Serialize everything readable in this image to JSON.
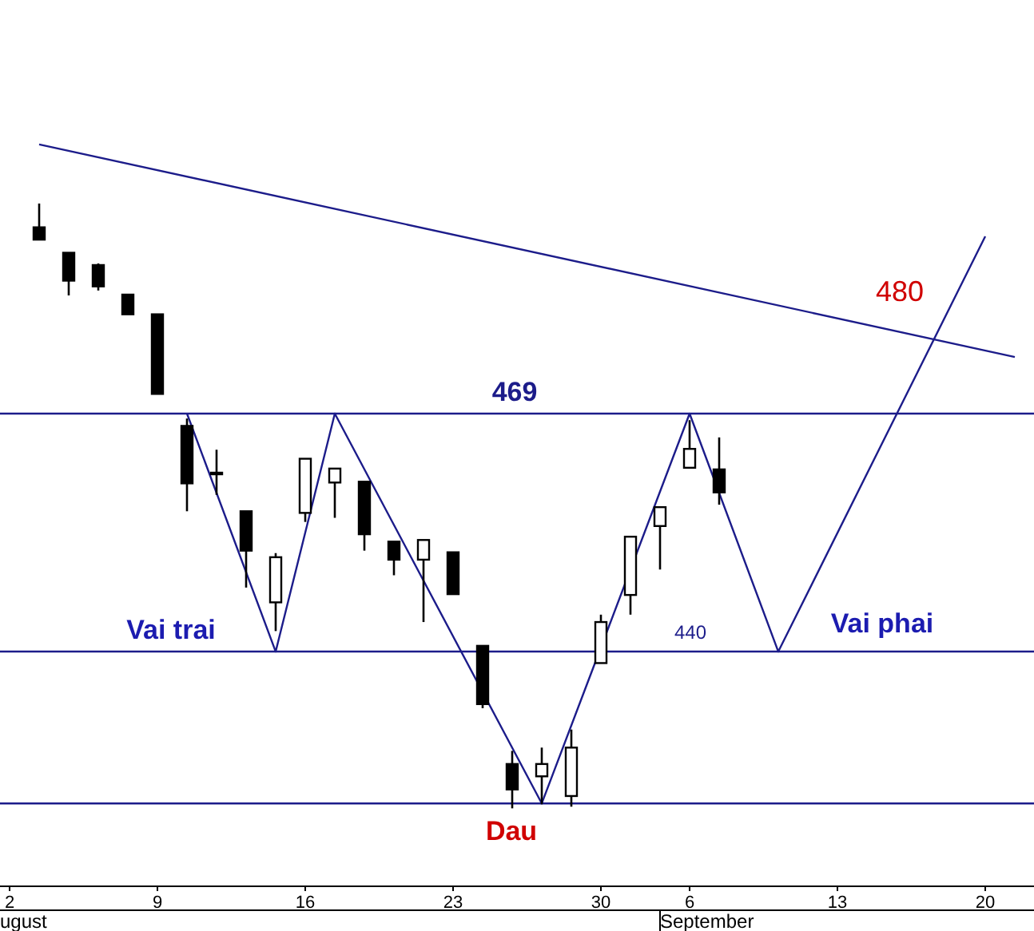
{
  "chart_data": {
    "type": "candlestick",
    "categories": [
      "2",
      null,
      null,
      null,
      null,
      "9",
      null,
      null,
      null,
      null,
      "16",
      null,
      null,
      null,
      null,
      "23",
      null,
      null,
      null,
      null,
      "30",
      null,
      null,
      "6",
      null,
      null,
      null,
      null,
      "13",
      null,
      null,
      null,
      null,
      "20",
      null,
      null
    ],
    "ohlc": [
      null,
      [
        491.7,
        494.6,
        490.2,
        490.2
      ],
      [
        488.6,
        488.6,
        483.4,
        485.2
      ],
      [
        487.1,
        487.3,
        484.0,
        484.5
      ],
      [
        483.5,
        483.5,
        481.1,
        481.1
      ],
      [
        481.1,
        481.1,
        471.4,
        471.4
      ],
      [
        467.5,
        468.4,
        457.1,
        460.5
      ],
      [
        461.8,
        464.6,
        459.1,
        461.8
      ],
      [
        457.1,
        457.1,
        447.8,
        452.3
      ],
      [
        446,
        452,
        442.5,
        451.5
      ],
      [
        456.9,
        463.5,
        455.8,
        463.5
      ],
      [
        460.6,
        462.3,
        456.3,
        462.3
      ],
      [
        460.7,
        460.7,
        452.3,
        454.3
      ],
      [
        453.4,
        453.4,
        449.3,
        451.2
      ],
      [
        451.2,
        453.6,
        443.6,
        453.6
      ],
      [
        452.1,
        452.1,
        447.0,
        447.0
      ],
      [
        440.7,
        440.7,
        433.1,
        433.6
      ],
      [
        426.3,
        427.9,
        420.9,
        423.2
      ],
      [
        424.8,
        428.3,
        421.4,
        426.3
      ],
      [
        422.4,
        430.5,
        421.1,
        428.3
      ],
      [
        438.6,
        444.5,
        438.6,
        443.6
      ],
      [
        446.9,
        454.0,
        444.5,
        454.0
      ],
      [
        455.3,
        457.6,
        450.0,
        457.6
      ],
      [
        462.4,
        468.2,
        462.4,
        464.7
      ],
      [
        462.2,
        466.1,
        457.9,
        459.4
      ],
      null,
      null,
      null,
      null,
      null,
      null,
      null,
      null,
      null,
      null,
      null
    ],
    "color": "#000000",
    "series": [
      {
        "type": "line",
        "color": "#1c1c8a",
        "values": [
          null,
          null,
          null,
          null,
          null,
          null,
          469,
          null,
          null,
          440,
          null,
          469,
          null,
          null,
          null,
          null,
          null,
          null,
          421.5,
          null,
          null,
          null,
          null,
          469,
          null,
          null,
          440,
          null,
          null,
          null,
          null,
          null,
          null,
          490.6,
          null,
          null
        ]
      },
      {
        "type": "line",
        "color": "#1c1c8a",
        "values": [
          null,
          501.8,
          null,
          null,
          null,
          null,
          null,
          null,
          null,
          null,
          null,
          null,
          null,
          null,
          null,
          null,
          null,
          null,
          null,
          null,
          null,
          null,
          null,
          null,
          null,
          null,
          null,
          null,
          null,
          null,
          null,
          null,
          null,
          null,
          475.9,
          null
        ]
      }
    ],
    "ylim": [
      411.4,
      519.4
    ],
    "tick_labels": "x",
    "ref_lines": [
      {
        "axis": "y",
        "value": 469,
        "label": "469",
        "color": "#1c1c8a"
      },
      {
        "axis": "y",
        "value": 440,
        "label": "440",
        "color": "#1c1c8a"
      },
      {
        "axis": "y",
        "value": 421.5,
        "color": "#1c1c8a"
      }
    ],
    "annotations": [
      {
        "text": "480",
        "y": 480
      },
      {
        "text": "Vai trai",
        "y": 440
      },
      {
        "text": "Dau",
        "y": 421.5
      },
      {
        "text": "Vai phai",
        "y": 440
      },
      "ugust",
      "September"
    ]
  }
}
